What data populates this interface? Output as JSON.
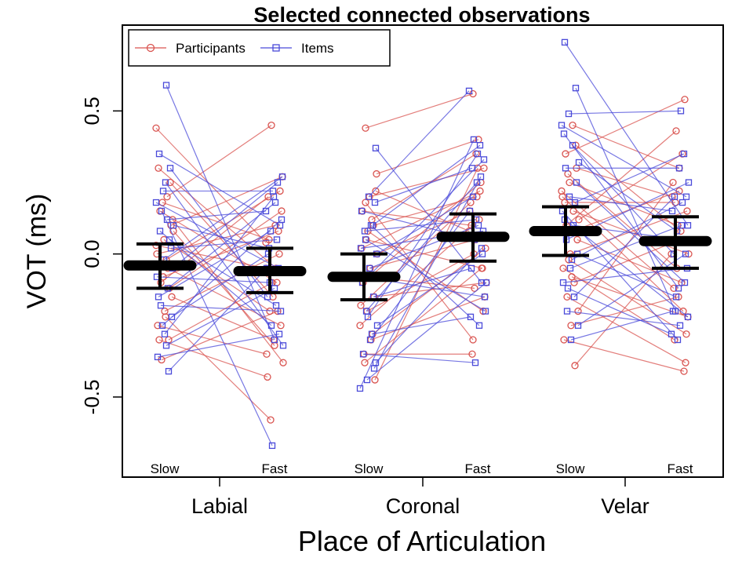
{
  "chart_data": {
    "type": "scatter",
    "title": "Selected connected observations",
    "xlabel": "Place of Articulation",
    "ylabel": "VOT (ms)",
    "ylim": [
      -0.78,
      0.8
    ],
    "yticks": [
      {
        "value": 0.5,
        "label": "0.5"
      },
      {
        "value": 0.0,
        "label": "0.0"
      },
      {
        "value": -0.5,
        "label": "-0.5"
      }
    ],
    "categories": [
      "Labial",
      "Coronal",
      "Velar"
    ],
    "conditions": [
      "Slow",
      "Fast"
    ],
    "legend": {
      "position": "top-left",
      "entries": [
        {
          "name": "Participants",
          "color": "#d9534f",
          "marker": "circle"
        },
        {
          "name": "Items",
          "color": "#4a4ad9",
          "marker": "square"
        }
      ]
    },
    "summary": {
      "mean_color": "#000000",
      "groups": [
        {
          "category": "Labial",
          "condition": "Slow",
          "mean": -0.04,
          "lower": -0.12,
          "upper": 0.035
        },
        {
          "category": "Labial",
          "condition": "Fast",
          "mean": -0.06,
          "lower": -0.135,
          "upper": 0.02
        },
        {
          "category": "Coronal",
          "condition": "Slow",
          "mean": -0.08,
          "lower": -0.16,
          "upper": 0.0
        },
        {
          "category": "Coronal",
          "condition": "Fast",
          "mean": 0.06,
          "lower": -0.025,
          "upper": 0.14
        },
        {
          "category": "Velar",
          "condition": "Slow",
          "mean": 0.08,
          "lower": -0.005,
          "upper": 0.165
        },
        {
          "category": "Velar",
          "condition": "Fast",
          "mean": 0.045,
          "lower": -0.05,
          "upper": 0.13
        }
      ]
    },
    "series": [
      {
        "name": "Participants",
        "color": "#d9534f",
        "marker": "circle",
        "pairs": {
          "Labial": [
            [
              0.44,
              0.04
            ],
            [
              0.2,
              0.45
            ],
            [
              0.15,
              -0.1
            ],
            [
              0.1,
              0.27
            ],
            [
              0.05,
              -0.2
            ],
            [
              0.0,
              0.1
            ],
            [
              -0.05,
              -0.25
            ],
            [
              -0.1,
              0.2
            ],
            [
              -0.15,
              -0.3
            ],
            [
              -0.2,
              0.0
            ],
            [
              -0.25,
              -0.35
            ],
            [
              -0.3,
              -0.1
            ],
            [
              -0.37,
              -0.2
            ],
            [
              0.12,
              -0.38
            ],
            [
              -0.22,
              -0.58
            ],
            [
              0.3,
              -0.05
            ],
            [
              -0.12,
              0.15
            ],
            [
              0.18,
              0.05
            ],
            [
              0.08,
              -0.32
            ],
            [
              -0.02,
              0.22
            ],
            [
              -0.3,
              -0.43
            ],
            [
              0.25,
              -0.15
            ],
            [
              -0.08,
              0.08
            ],
            [
              0.03,
              -0.05
            ]
          ],
          "Coronal": [
            [
              0.44,
              0.56
            ],
            [
              0.28,
              0.4
            ],
            [
              0.2,
              0.3
            ],
            [
              0.15,
              0.1
            ],
            [
              0.1,
              0.2
            ],
            [
              0.05,
              -0.05
            ],
            [
              0.0,
              0.15
            ],
            [
              -0.05,
              0.05
            ],
            [
              -0.1,
              0.25
            ],
            [
              -0.15,
              -0.1
            ],
            [
              -0.2,
              0.0
            ],
            [
              -0.25,
              0.12
            ],
            [
              -0.3,
              -0.15
            ],
            [
              -0.35,
              -0.35
            ],
            [
              -0.44,
              0.3
            ],
            [
              0.08,
              -0.2
            ],
            [
              -0.18,
              0.18
            ],
            [
              0.12,
              0.35
            ],
            [
              -0.38,
              -0.05
            ],
            [
              0.22,
              0.08
            ],
            [
              -0.08,
              -0.12
            ],
            [
              0.02,
              0.22
            ],
            [
              -0.28,
              0.02
            ],
            [
              0.18,
              -0.3
            ]
          ],
          "Velar": [
            [
              0.45,
              0.3
            ],
            [
              0.35,
              0.54
            ],
            [
              0.3,
              0.2
            ],
            [
              0.25,
              0.1
            ],
            [
              0.2,
              -0.2
            ],
            [
              0.15,
              0.0
            ],
            [
              0.1,
              0.43
            ],
            [
              0.05,
              -0.1
            ],
            [
              0.0,
              0.15
            ],
            [
              -0.05,
              -0.3
            ],
            [
              -0.1,
              0.05
            ],
            [
              -0.15,
              -0.38
            ],
            [
              -0.2,
              0.25
            ],
            [
              -0.25,
              -0.15
            ],
            [
              -0.3,
              -0.41
            ],
            [
              -0.39,
              0.0
            ],
            [
              0.28,
              -0.05
            ],
            [
              0.12,
              0.35
            ],
            [
              -0.08,
              -0.22
            ],
            [
              0.18,
              0.18
            ],
            [
              0.38,
              0.08
            ],
            [
              -0.02,
              -0.28
            ],
            [
              0.22,
              -0.12
            ],
            [
              0.08,
              0.22
            ]
          ]
        }
      },
      {
        "name": "Items",
        "color": "#4a4ad9",
        "marker": "square",
        "pairs": {
          "Labial": [
            [
              0.59,
              -0.3
            ],
            [
              0.35,
              0.1
            ],
            [
              0.3,
              -0.15
            ],
            [
              0.22,
              0.22
            ],
            [
              0.18,
              -0.05
            ],
            [
              0.12,
              0.15
            ],
            [
              0.08,
              -0.25
            ],
            [
              0.02,
              0.05
            ],
            [
              -0.02,
              0.27
            ],
            [
              -0.08,
              -0.1
            ],
            [
              -0.12,
              0.18
            ],
            [
              -0.18,
              -0.2
            ],
            [
              -0.22,
              0.0
            ],
            [
              -0.28,
              0.2
            ],
            [
              -0.36,
              -0.28
            ],
            [
              -0.41,
              -0.05
            ],
            [
              0.15,
              -0.67
            ],
            [
              -0.05,
              0.25
            ],
            [
              0.25,
              -0.32
            ],
            [
              -0.15,
              0.08
            ],
            [
              0.05,
              -0.18
            ],
            [
              -0.25,
              0.12
            ],
            [
              0.1,
              0.02
            ],
            [
              -0.32,
              -0.12
            ]
          ],
          "Coronal": [
            [
              0.37,
              -0.1
            ],
            [
              0.2,
              0.57
            ],
            [
              0.15,
              0.05
            ],
            [
              0.1,
              0.38
            ],
            [
              0.05,
              -0.2
            ],
            [
              0.0,
              0.2
            ],
            [
              -0.05,
              0.1
            ],
            [
              -0.1,
              0.33
            ],
            [
              -0.15,
              -0.05
            ],
            [
              -0.2,
              0.25
            ],
            [
              -0.25,
              0.0
            ],
            [
              -0.3,
              0.15
            ],
            [
              -0.35,
              -0.38
            ],
            [
              -0.4,
              0.27
            ],
            [
              -0.44,
              -0.1
            ],
            [
              -0.47,
              0.4
            ],
            [
              0.1,
              -0.25
            ],
            [
              -0.08,
              -0.15
            ],
            [
              0.18,
              0.3
            ],
            [
              -0.22,
              0.35
            ],
            [
              0.02,
              0.08
            ],
            [
              -0.28,
              -0.22
            ],
            [
              0.08,
              0.12
            ],
            [
              -0.38,
              0.02
            ]
          ],
          "Velar": [
            [
              0.74,
              0.1
            ],
            [
              0.58,
              -0.2
            ],
            [
              0.49,
              0.5
            ],
            [
              0.45,
              0.2
            ],
            [
              0.38,
              0.0
            ],
            [
              0.3,
              0.3
            ],
            [
              0.25,
              -0.1
            ],
            [
              0.2,
              0.15
            ],
            [
              0.15,
              -0.3
            ],
            [
              0.1,
              0.05
            ],
            [
              0.05,
              0.25
            ],
            [
              0.0,
              -0.15
            ],
            [
              -0.05,
              0.1
            ],
            [
              -0.1,
              -0.05
            ],
            [
              -0.15,
              0.2
            ],
            [
              -0.2,
              -0.25
            ],
            [
              -0.25,
              0.0
            ],
            [
              -0.3,
              -0.2
            ],
            [
              0.42,
              -0.12
            ],
            [
              0.18,
              0.35
            ],
            [
              -0.12,
              -0.28
            ],
            [
              0.32,
              0.08
            ],
            [
              -0.02,
              0.18
            ],
            [
              0.12,
              -0.22
            ]
          ]
        }
      }
    ]
  }
}
